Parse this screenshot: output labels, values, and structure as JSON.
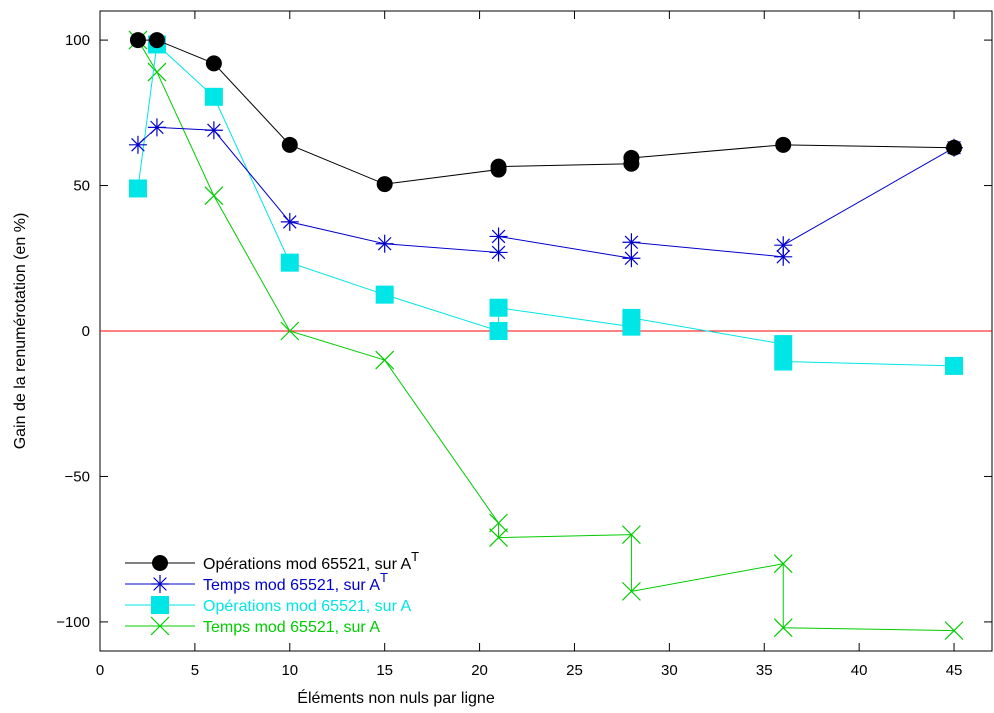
{
  "chart_data": {
    "type": "line",
    "title": "",
    "xlabel": "Éléments non nuls par ligne",
    "ylabel": "Gain de la renumérotation (en %)",
    "xlim": [
      0,
      47
    ],
    "ylim": [
      -110,
      110
    ],
    "xticks": [
      0,
      5,
      10,
      15,
      20,
      25,
      30,
      35,
      40,
      45
    ],
    "yticks": [
      100,
      50,
      0,
      -50,
      -100
    ],
    "ytick_labels": [
      "100",
      "50",
      "0",
      "−50",
      "−100"
    ],
    "grid": false,
    "legend_position": "bottom-left",
    "reference_line": {
      "y": 0,
      "color": "#ff0000"
    },
    "series": [
      {
        "name": "Opérations mod 65521, sur A",
        "name_sup": "T",
        "color": "#000000",
        "marker": "circle",
        "points": [
          [
            2,
            100
          ],
          [
            3,
            100
          ],
          [
            6,
            92
          ],
          [
            10,
            64
          ],
          [
            15,
            50.5
          ],
          [
            21,
            55.5
          ],
          [
            21,
            56.5
          ],
          [
            28,
            57.5
          ],
          [
            28,
            59.5
          ],
          [
            36,
            64
          ],
          [
            45,
            63
          ]
        ]
      },
      {
        "name": "Temps mod 65521, sur A",
        "name_sup": "T",
        "color": "#0000cc",
        "marker": "asterisk",
        "points": [
          [
            2,
            64
          ],
          [
            3,
            70
          ],
          [
            6,
            69
          ],
          [
            10,
            37.5
          ],
          [
            15,
            30
          ],
          [
            21,
            27
          ],
          [
            21,
            32.5
          ],
          [
            28,
            25
          ],
          [
            28,
            30.5
          ],
          [
            36,
            25.5
          ],
          [
            36,
            29.5
          ],
          [
            45,
            63
          ]
        ]
      },
      {
        "name": "Opérations mod 65521, sur A",
        "name_sup": "",
        "color": "#00e5e5",
        "marker": "square",
        "points": [
          [
            2,
            49
          ],
          [
            3,
            98.5
          ],
          [
            6,
            80.5
          ],
          [
            10,
            23.5
          ],
          [
            15,
            12.5
          ],
          [
            21,
            0
          ],
          [
            21,
            8
          ],
          [
            28,
            1.5
          ],
          [
            28,
            4.5
          ],
          [
            36,
            -4.5
          ],
          [
            36,
            -10.5
          ],
          [
            45,
            -12
          ]
        ]
      },
      {
        "name": "Temps mod 65521, sur A",
        "name_sup": "",
        "color": "#00cc00",
        "marker": "x",
        "points": [
          [
            2,
            100
          ],
          [
            3,
            89
          ],
          [
            6,
            46.5
          ],
          [
            10,
            0
          ],
          [
            15,
            -10
          ],
          [
            21,
            -66
          ],
          [
            21,
            -71
          ],
          [
            28,
            -70
          ],
          [
            28,
            -89.5
          ],
          [
            36,
            -80
          ],
          [
            36,
            -102
          ],
          [
            45,
            -103
          ]
        ]
      }
    ]
  }
}
